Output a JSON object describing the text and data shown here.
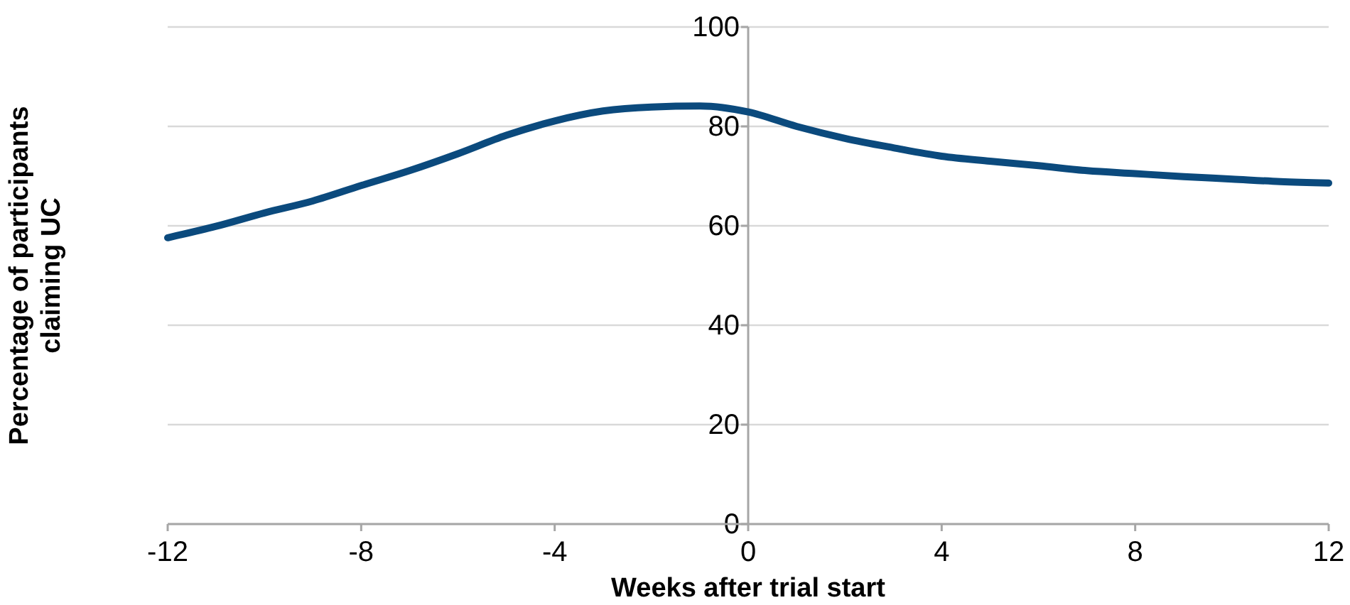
{
  "chart_data": {
    "type": "line",
    "xlabel": "Weeks after trial start",
    "ylabel": "Percentage of participants claiming UC",
    "x": [
      -12,
      -11,
      -10,
      -9,
      -8,
      -7,
      -6,
      -5,
      -4,
      -3,
      -2,
      -1,
      0,
      1,
      2,
      3,
      4,
      5,
      6,
      7,
      8,
      9,
      10,
      11,
      12
    ],
    "series": [
      {
        "color": "#0b4a7d",
        "values": [
          57.6,
          59.9,
          62.6,
          65.0,
          68.1,
          71.1,
          74.5,
          78.2,
          81.1,
          83.1,
          83.9,
          84.1,
          82.9,
          80.0,
          77.6,
          75.7,
          74.0,
          73.0,
          72.1,
          71.1,
          70.5,
          69.9,
          69.4,
          68.9,
          68.6
        ]
      }
    ],
    "xlim": [
      -12,
      12
    ],
    "xticks": [
      -12,
      -8,
      -4,
      0,
      4,
      8,
      12
    ],
    "ylim": [
      0,
      100
    ],
    "yticks": [
      0,
      20,
      40,
      60,
      80,
      100
    ],
    "grid": "y",
    "marker": "none",
    "line_style": "solid"
  }
}
